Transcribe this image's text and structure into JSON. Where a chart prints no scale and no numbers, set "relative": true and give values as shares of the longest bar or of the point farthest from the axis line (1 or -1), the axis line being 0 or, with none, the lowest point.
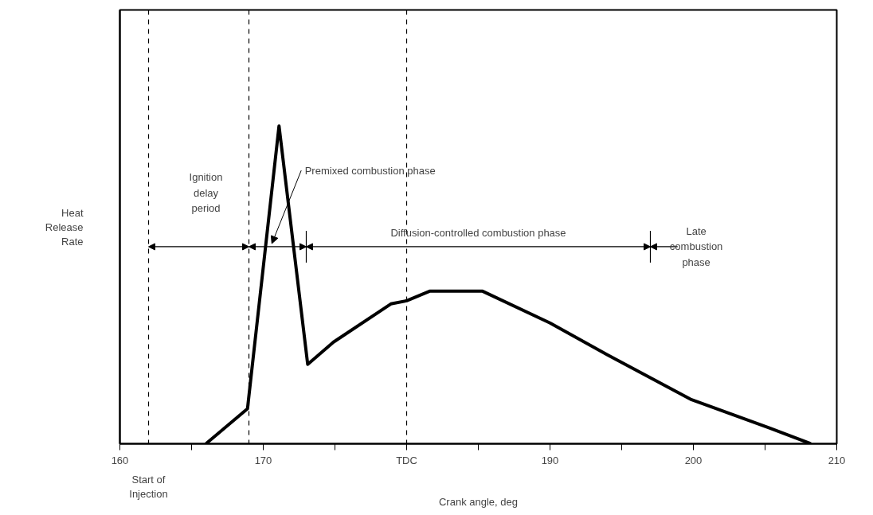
{
  "chart_data": {
    "type": "line",
    "xlabel": "Crank angle, deg",
    "ylabel": "Heat\nRelease\nRate",
    "relative": true,
    "line_style": "solid",
    "marker": "none",
    "grid": false,
    "x": [
      166.0,
      168.9,
      171.1,
      173.1,
      174.9,
      178.9,
      180.0,
      181.6,
      185.3,
      190.0,
      194.0,
      199.8,
      205.3,
      208.2
    ],
    "series": [
      {
        "color": "#000000",
        "values": [
          0,
          0.11,
          1,
          0.25,
          0.32,
          0.44,
          0.45,
          0.48,
          0.48,
          0.38,
          0.28,
          0.14,
          0.05,
          0
        ]
      }
    ],
    "xlim": [
      160,
      210
    ],
    "xticks": [
      160,
      {
        "value": 165,
        "label": null
      },
      170,
      {
        "value": 175,
        "label": null
      },
      {
        "value": 180,
        "label": "TDC"
      },
      {
        "value": 185,
        "label": null
      },
      190,
      {
        "value": 195,
        "label": null
      },
      200,
      {
        "value": 205,
        "label": null
      },
      210
    ],
    "ref_lines": [
      {
        "axis": "x",
        "value": 162,
        "line_style": "dashed",
        "color": "#000000"
      },
      {
        "axis": "x",
        "value": 169,
        "line_style": "dashed",
        "color": "#000000"
      },
      {
        "axis": "x",
        "value": 173,
        "line_style": "solid",
        "color": "#000000"
      },
      {
        "axis": "x",
        "value": 180,
        "line_style": "dashed",
        "color": "#000000"
      },
      {
        "axis": "x",
        "value": 197,
        "line_style": "solid",
        "color": "#000000"
      }
    ],
    "annotations": [
      "Start of\nInjection",
      "Ignition\ndelay\nperiod",
      "Premixed combustion phase",
      "Diffusion-controlled combustion phase",
      "Late\ncombustion\nphase"
    ]
  }
}
